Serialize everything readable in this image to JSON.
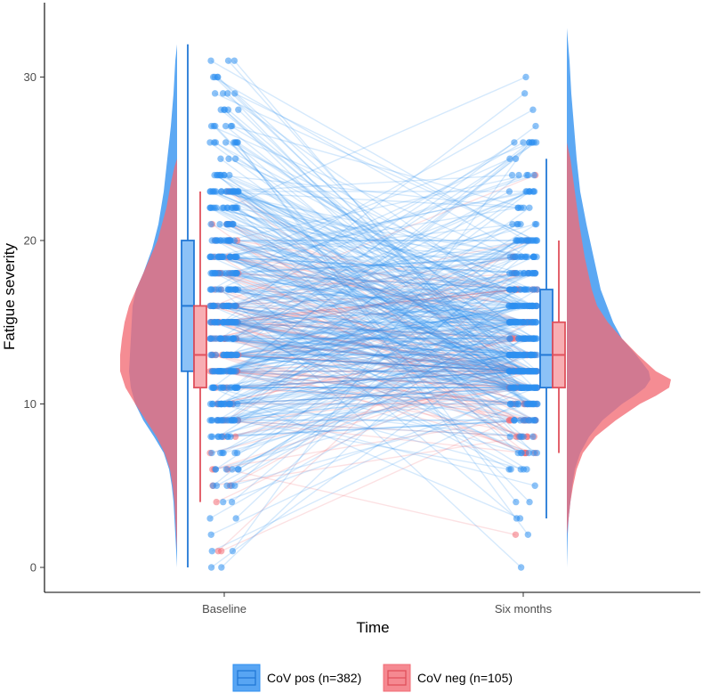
{
  "chart_data": {
    "type": "raincloud",
    "xlabel": "Time",
    "ylabel": "Fatigue severity",
    "categories": [
      "Baseline",
      "Six months"
    ],
    "y_ticks": [
      0,
      10,
      20,
      30
    ],
    "ylim": [
      -0.8,
      34.5
    ],
    "groups": [
      {
        "name": "CoV pos",
        "legend_label": "CoV pos (n=382)",
        "color": "#2e8ff0",
        "box": {
          "Baseline": {
            "min": 0,
            "q1": 12,
            "median": 16,
            "q3": 20,
            "max": 32
          },
          "Six months": {
            "min": 3,
            "q1": 11,
            "median": 13,
            "q3": 17,
            "max": 25
          }
        },
        "density_range": {
          "Baseline": [
            0,
            32
          ],
          "Six months": [
            0,
            33
          ]
        }
      },
      {
        "name": "CoV neg",
        "legend_label": "CoV neg (n=105)",
        "color": "#f26b75",
        "box": {
          "Baseline": {
            "min": 4,
            "q1": 11,
            "median": 13,
            "q3": 16,
            "max": 23
          },
          "Six months": {
            "min": 7,
            "q1": 11,
            "median": 13,
            "q3": 15,
            "max": 20
          }
        },
        "density_range": {
          "Baseline": [
            1,
            25
          ],
          "Six months": [
            2,
            26
          ]
        }
      }
    ]
  }
}
